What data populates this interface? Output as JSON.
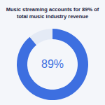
{
  "chart_data": {
    "type": "pie",
    "title": "Music streaming accounts for 89% of total music industry revenue",
    "values": [
      89,
      11
    ],
    "colors": [
      "#3d6fe0",
      "#e4eaf5"
    ],
    "annotation": "89%"
  }
}
